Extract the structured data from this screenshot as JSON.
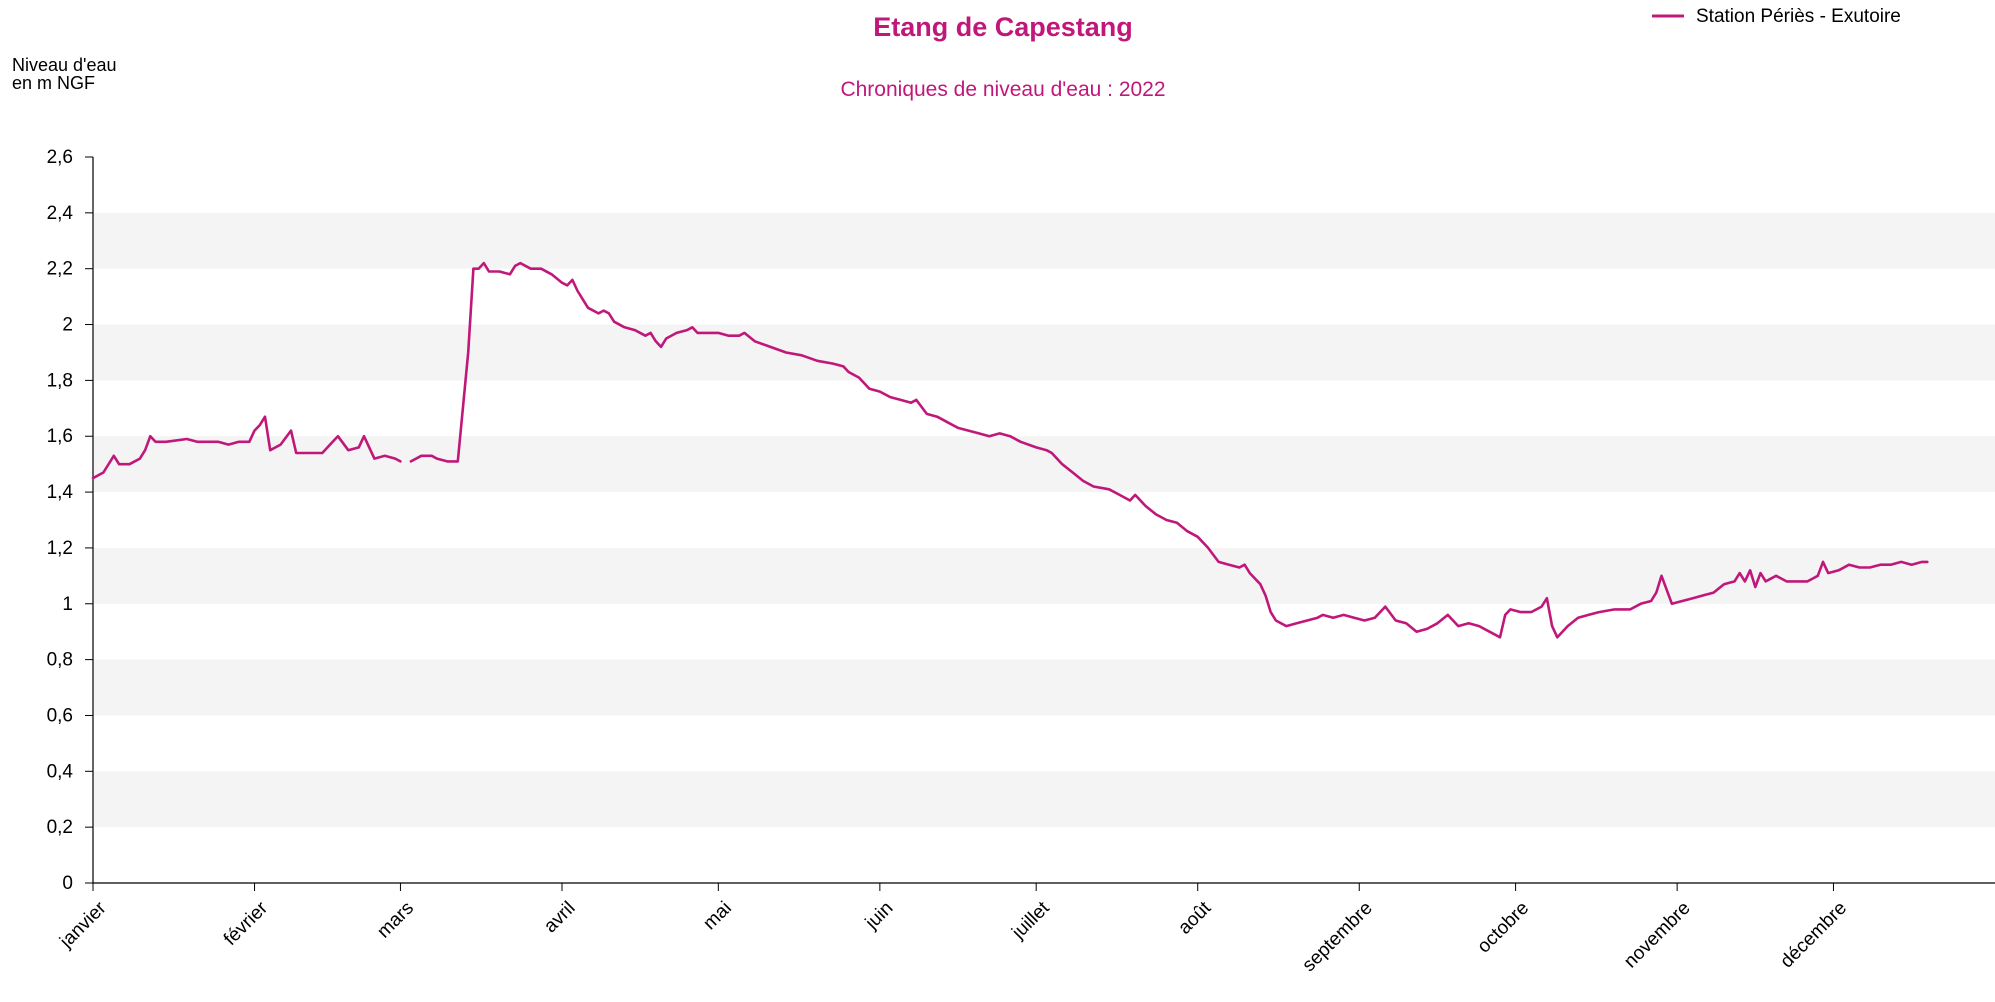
{
  "colors": {
    "series": "#c0187a",
    "band": "#f4f4f4",
    "axis": "#000000"
  },
  "chart_data": {
    "type": "line",
    "title": "Etang de Capestang",
    "subtitle": "Chroniques de niveau d'eau : 2022",
    "ylabel_line1": "Niveau d'eau",
    "ylabel_line2": "en m NGF",
    "ylim": [
      0,
      2.6
    ],
    "xlim": [
      0,
      365
    ],
    "grid": "alternating-horizontal-bands",
    "legend_placement": "top-right",
    "y_ticks": [
      {
        "value": 0,
        "label": "0"
      },
      {
        "value": 0.2,
        "label": "0,2"
      },
      {
        "value": 0.4,
        "label": "0,4"
      },
      {
        "value": 0.6,
        "label": "0,6"
      },
      {
        "value": 0.8,
        "label": "0,8"
      },
      {
        "value": 1.0,
        "label": "1"
      },
      {
        "value": 1.2,
        "label": "1,2"
      },
      {
        "value": 1.4,
        "label": "1,4"
      },
      {
        "value": 1.6,
        "label": "1,6"
      },
      {
        "value": 1.8,
        "label": "1,8"
      },
      {
        "value": 2.0,
        "label": "2"
      },
      {
        "value": 2.2,
        "label": "2,2"
      },
      {
        "value": 2.4,
        "label": "2,4"
      },
      {
        "value": 2.6,
        "label": "2,6"
      }
    ],
    "x_ticks": [
      {
        "value": 0,
        "label": "janvier"
      },
      {
        "value": 31,
        "label": "février"
      },
      {
        "value": 59,
        "label": "mars"
      },
      {
        "value": 90,
        "label": "avril"
      },
      {
        "value": 120,
        "label": "mai"
      },
      {
        "value": 151,
        "label": "juin"
      },
      {
        "value": 181,
        "label": "juillet"
      },
      {
        "value": 212,
        "label": "août"
      },
      {
        "value": 243,
        "label": "septembre"
      },
      {
        "value": 273,
        "label": "octobre"
      },
      {
        "value": 304,
        "label": "novembre"
      },
      {
        "value": 334,
        "label": "décembre"
      }
    ],
    "series": [
      {
        "name": "Station Périès - Exutoire",
        "segments": [
          [
            [
              0,
              1.45
            ],
            [
              2,
              1.47
            ],
            [
              4,
              1.53
            ],
            [
              5,
              1.5
            ],
            [
              7,
              1.5
            ],
            [
              9,
              1.52
            ],
            [
              10,
              1.55
            ],
            [
              11,
              1.6
            ],
            [
              12,
              1.58
            ],
            [
              14,
              1.58
            ],
            [
              18,
              1.59
            ],
            [
              20,
              1.58
            ],
            [
              24,
              1.58
            ],
            [
              26,
              1.57
            ],
            [
              28,
              1.58
            ],
            [
              30,
              1.58
            ],
            [
              31,
              1.62
            ],
            [
              32,
              1.64
            ],
            [
              33,
              1.67
            ],
            [
              34,
              1.55
            ],
            [
              36,
              1.57
            ],
            [
              38,
              1.62
            ],
            [
              39,
              1.54
            ],
            [
              42,
              1.54
            ],
            [
              44,
              1.54
            ],
            [
              46,
              1.58
            ],
            [
              47,
              1.6
            ],
            [
              49,
              1.55
            ],
            [
              51,
              1.56
            ],
            [
              52,
              1.6
            ],
            [
              54,
              1.52
            ],
            [
              56,
              1.53
            ],
            [
              58,
              1.52
            ],
            [
              59,
              1.51
            ]
          ],
          [
            [
              61,
              1.51
            ],
            [
              63,
              1.53
            ],
            [
              65,
              1.53
            ],
            [
              66,
              1.52
            ],
            [
              68,
              1.51
            ],
            [
              69,
              1.51
            ],
            [
              70,
              1.51
            ],
            [
              72,
              1.9
            ],
            [
              73,
              2.2
            ],
            [
              74,
              2.2
            ],
            [
              75,
              2.22
            ],
            [
              76,
              2.19
            ],
            [
              78,
              2.19
            ],
            [
              80,
              2.18
            ],
            [
              81,
              2.21
            ],
            [
              82,
              2.22
            ],
            [
              84,
              2.2
            ],
            [
              86,
              2.2
            ],
            [
              88,
              2.18
            ],
            [
              90,
              2.15
            ],
            [
              91,
              2.14
            ],
            [
              92,
              2.16
            ],
            [
              93,
              2.12
            ],
            [
              95,
              2.06
            ],
            [
              97,
              2.04
            ],
            [
              98,
              2.05
            ],
            [
              99,
              2.04
            ],
            [
              100,
              2.01
            ],
            [
              102,
              1.99
            ],
            [
              104,
              1.98
            ],
            [
              106,
              1.96
            ],
            [
              107,
              1.97
            ],
            [
              108,
              1.94
            ],
            [
              109,
              1.92
            ],
            [
              110,
              1.95
            ],
            [
              112,
              1.97
            ],
            [
              114,
              1.98
            ],
            [
              115,
              1.99
            ],
            [
              116,
              1.97
            ],
            [
              118,
              1.97
            ],
            [
              120,
              1.97
            ],
            [
              122,
              1.96
            ],
            [
              124,
              1.96
            ],
            [
              125,
              1.97
            ],
            [
              127,
              1.94
            ],
            [
              130,
              1.92
            ],
            [
              133,
              1.9
            ],
            [
              136,
              1.89
            ],
            [
              139,
              1.87
            ],
            [
              142,
              1.86
            ],
            [
              144,
              1.85
            ],
            [
              145,
              1.83
            ],
            [
              147,
              1.81
            ],
            [
              149,
              1.77
            ],
            [
              151,
              1.76
            ],
            [
              153,
              1.74
            ],
            [
              155,
              1.73
            ],
            [
              157,
              1.72
            ],
            [
              158,
              1.73
            ],
            [
              160,
              1.68
            ],
            [
              162,
              1.67
            ],
            [
              164,
              1.65
            ],
            [
              166,
              1.63
            ],
            [
              168,
              1.62
            ],
            [
              170,
              1.61
            ],
            [
              172,
              1.6
            ],
            [
              174,
              1.61
            ],
            [
              176,
              1.6
            ],
            [
              178,
              1.58
            ],
            [
              181,
              1.56
            ],
            [
              183,
              1.55
            ],
            [
              184,
              1.54
            ],
            [
              186,
              1.5
            ],
            [
              188,
              1.47
            ],
            [
              190,
              1.44
            ],
            [
              192,
              1.42
            ],
            [
              195,
              1.41
            ],
            [
              197,
              1.39
            ],
            [
              199,
              1.37
            ],
            [
              200,
              1.39
            ],
            [
              202,
              1.35
            ],
            [
              204,
              1.32
            ],
            [
              206,
              1.3
            ],
            [
              208,
              1.29
            ],
            [
              210,
              1.26
            ],
            [
              212,
              1.24
            ],
            [
              214,
              1.2
            ],
            [
              216,
              1.15
            ],
            [
              218,
              1.14
            ],
            [
              220,
              1.13
            ],
            [
              221,
              1.14
            ],
            [
              222,
              1.11
            ],
            [
              224,
              1.07
            ],
            [
              225,
              1.03
            ],
            [
              226,
              0.97
            ],
            [
              227,
              0.94
            ],
            [
              229,
              0.92
            ],
            [
              231,
              0.93
            ],
            [
              233,
              0.94
            ],
            [
              235,
              0.95
            ],
            [
              236,
              0.96
            ],
            [
              238,
              0.95
            ],
            [
              240,
              0.96
            ],
            [
              242,
              0.95
            ],
            [
              244,
              0.94
            ],
            [
              246,
              0.95
            ],
            [
              248,
              0.99
            ],
            [
              250,
              0.94
            ],
            [
              252,
              0.93
            ],
            [
              254,
              0.9
            ],
            [
              256,
              0.91
            ],
            [
              258,
              0.93
            ],
            [
              260,
              0.96
            ],
            [
              262,
              0.92
            ],
            [
              264,
              0.93
            ],
            [
              266,
              0.92
            ],
            [
              268,
              0.9
            ],
            [
              270,
              0.88
            ],
            [
              271,
              0.96
            ],
            [
              272,
              0.98
            ],
            [
              274,
              0.97
            ],
            [
              276,
              0.97
            ],
            [
              278,
              0.99
            ],
            [
              279,
              1.02
            ],
            [
              280,
              0.92
            ],
            [
              281,
              0.88
            ],
            [
              283,
              0.92
            ],
            [
              285,
              0.95
            ],
            [
              287,
              0.96
            ],
            [
              289,
              0.97
            ],
            [
              292,
              0.98
            ],
            [
              295,
              0.98
            ],
            [
              297,
              1.0
            ],
            [
              299,
              1.01
            ],
            [
              300,
              1.04
            ],
            [
              301,
              1.1
            ],
            [
              303,
              1.0
            ],
            [
              305,
              1.01
            ],
            [
              307,
              1.02
            ],
            [
              309,
              1.03
            ],
            [
              311,
              1.04
            ],
            [
              313,
              1.07
            ],
            [
              315,
              1.08
            ],
            [
              316,
              1.11
            ],
            [
              317,
              1.08
            ],
            [
              318,
              1.12
            ],
            [
              319,
              1.06
            ],
            [
              320,
              1.11
            ],
            [
              321,
              1.08
            ],
            [
              323,
              1.1
            ],
            [
              325,
              1.08
            ],
            [
              327,
              1.08
            ],
            [
              329,
              1.08
            ],
            [
              330,
              1.09
            ],
            [
              331,
              1.1
            ],
            [
              332,
              1.15
            ],
            [
              333,
              1.11
            ],
            [
              335,
              1.12
            ],
            [
              337,
              1.14
            ],
            [
              339,
              1.13
            ],
            [
              341,
              1.13
            ],
            [
              343,
              1.14
            ],
            [
              345,
              1.14
            ],
            [
              347,
              1.15
            ],
            [
              349,
              1.14
            ],
            [
              351,
              1.15
            ],
            [
              352,
              1.15
            ]
          ]
        ]
      }
    ]
  }
}
